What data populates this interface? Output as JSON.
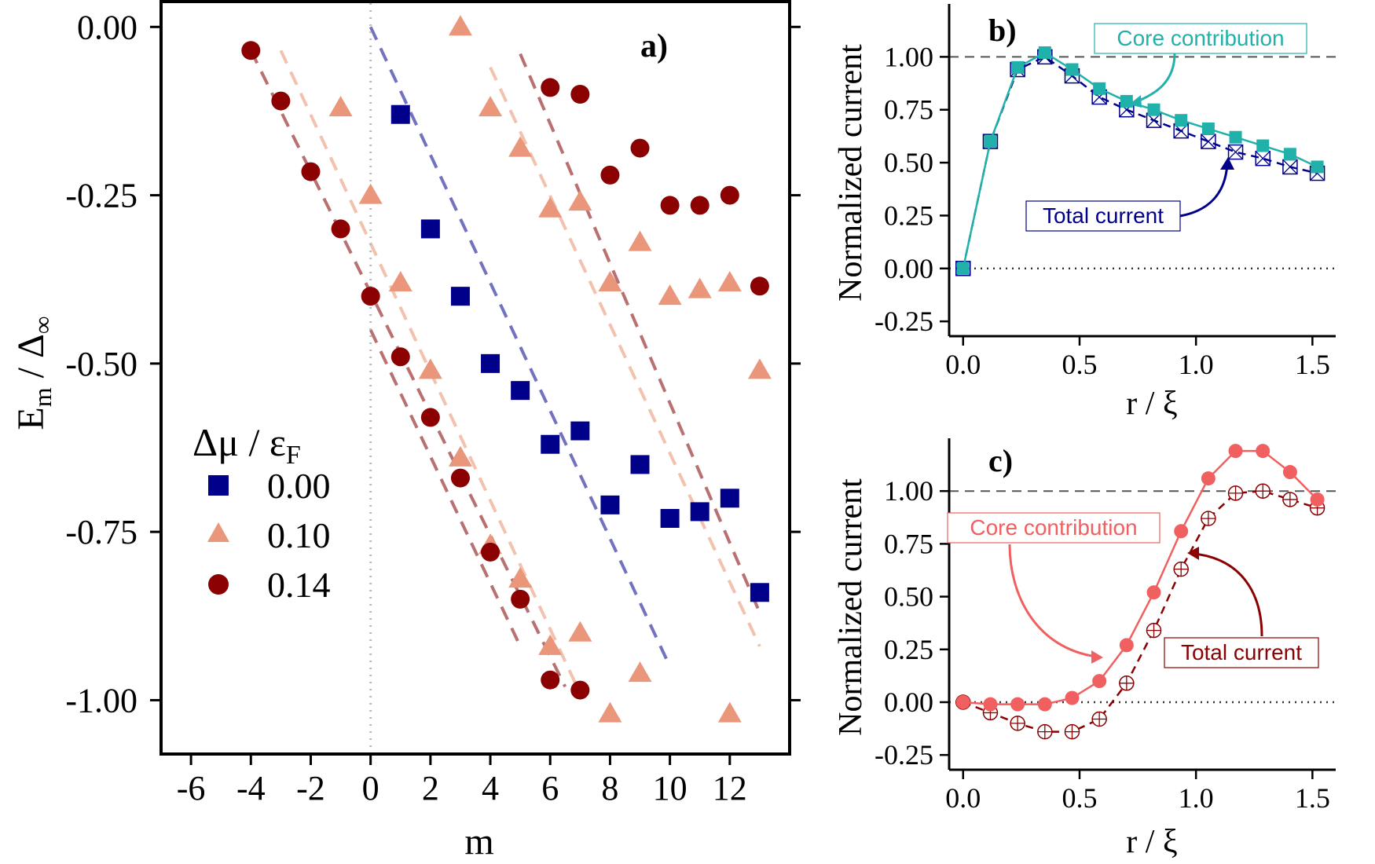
{
  "chart_data": [
    {
      "id": "a",
      "type": "scatter",
      "panel_label": "a)",
      "xlabel": "m",
      "ylabel_main": "E",
      "ylabel_sub": "m",
      "ylabel_den": " / Δ",
      "ylabel_den_sub": "∞",
      "xlim": [
        -7,
        14
      ],
      "ylim": [
        -1.08,
        0.04
      ],
      "xticks": [
        -6,
        -4,
        -2,
        0,
        2,
        4,
        6,
        8,
        10,
        12
      ],
      "xtick_labels": [
        "-6",
        "-4",
        "-2",
        "0",
        "2",
        "4",
        "6",
        "8",
        "10",
        "12"
      ],
      "yticks": [
        0,
        -0.25,
        -0.5,
        -0.75,
        -1.0
      ],
      "ytick_labels": [
        "0.00",
        "-0.25",
        "-0.50",
        "-0.75",
        "-1.00"
      ],
      "vline_x": 0,
      "legend": {
        "title_main": "Δμ / ε",
        "title_sub": "F",
        "entries": [
          "0.00",
          "0.10",
          "0.14"
        ]
      },
      "series": [
        {
          "name": "0.00",
          "marker": "square",
          "color": "#00008B",
          "x": [
            1,
            2,
            3,
            4,
            5,
            6,
            7,
            8,
            9,
            10,
            11,
            12,
            13
          ],
          "y": [
            -0.13,
            -0.3,
            -0.4,
            -0.5,
            -0.54,
            -0.62,
            -0.6,
            -0.71,
            -0.65,
            -0.73,
            -0.72,
            -0.7,
            -0.84
          ]
        },
        {
          "name": "0.10",
          "marker": "triangle",
          "color": "#E9967A",
          "x": [
            -1,
            0,
            1,
            2,
            3,
            3,
            4,
            4,
            5,
            5,
            6,
            6,
            7,
            7,
            8,
            8,
            9,
            9,
            10,
            11,
            12,
            12,
            13
          ],
          "y": [
            -0.12,
            -0.25,
            -0.38,
            -0.51,
            -0.64,
            0.0,
            -0.12,
            -0.77,
            -0.18,
            -0.82,
            -0.27,
            -0.92,
            -0.26,
            -0.9,
            -0.38,
            -1.02,
            -0.32,
            -0.96,
            -0.4,
            -0.39,
            -0.38,
            -1.02,
            -0.51
          ]
        },
        {
          "name": "0.14",
          "marker": "circle",
          "color": "#8B0000",
          "x": [
            -4,
            -3,
            -2,
            -1,
            0,
            1,
            2,
            3,
            4,
            5,
            6,
            6,
            7,
            7,
            8,
            9,
            10,
            11,
            12,
            13
          ],
          "y": [
            -0.035,
            -0.11,
            -0.215,
            -0.3,
            -0.4,
            -0.49,
            -0.58,
            -0.67,
            -0.78,
            -0.85,
            -0.09,
            -0.97,
            -0.1,
            -0.985,
            -0.22,
            -0.18,
            -0.265,
            -0.265,
            -0.25,
            -0.385
          ]
        }
      ],
      "guide_lines": [
        {
          "color": "#B87070",
          "x": [
            -4,
            6.5
          ],
          "y": [
            -0.035,
            -0.98
          ]
        },
        {
          "color": "#F2C2AE",
          "x": [
            -3,
            7
          ],
          "y": [
            -0.035,
            -0.99
          ]
        },
        {
          "color": "#7272C0",
          "x": [
            0,
            10
          ],
          "y": [
            0.0,
            -0.95
          ]
        },
        {
          "color": "#F2C2AE",
          "x": [
            4,
            13
          ],
          "y": [
            -0.06,
            -0.92
          ]
        },
        {
          "color": "#B87070",
          "x": [
            5,
            13
          ],
          "y": [
            -0.04,
            -0.87
          ]
        },
        {
          "color": "#B87070",
          "x": [
            0,
            5
          ],
          "y": [
            -0.45,
            -0.92
          ]
        }
      ]
    },
    {
      "id": "b",
      "type": "line",
      "panel_label": "b)",
      "xlabel": "r / ξ",
      "ylabel": "Normalized current",
      "xlim": [
        -0.06,
        1.6
      ],
      "ylim": [
        -0.32,
        1.25
      ],
      "xticks": [
        0.0,
        0.5,
        1.0,
        1.5
      ],
      "xtick_labels": [
        "0.0",
        "0.5",
        "1.0",
        "1.5"
      ],
      "yticks": [
        1.0,
        0.75,
        0.5,
        0.25,
        0.0,
        -0.25
      ],
      "ytick_labels": [
        "1.00",
        "0.75",
        "0.50",
        "0.25",
        "0.00",
        "-0.25"
      ],
      "hline_dashed": 1.0,
      "hline_dotted": 0.0,
      "x": [
        0,
        0.117,
        0.234,
        0.351,
        0.468,
        0.585,
        0.702,
        0.819,
        0.936,
        1.053,
        1.17,
        1.287,
        1.404,
        1.521
      ],
      "series": [
        {
          "name": "Core contribution",
          "color": "#20B2AA",
          "marker": "filled-square",
          "style": "solid",
          "values": [
            0.0,
            0.6,
            0.95,
            1.02,
            0.94,
            0.85,
            0.79,
            0.75,
            0.7,
            0.66,
            0.62,
            0.58,
            0.54,
            0.48
          ]
        },
        {
          "name": "Total current",
          "color": "#00008B",
          "marker": "crossed-square",
          "style": "dashed",
          "values": [
            0.0,
            0.6,
            0.94,
            1.0,
            0.91,
            0.81,
            0.75,
            0.7,
            0.65,
            0.6,
            0.55,
            0.52,
            0.48,
            0.45
          ]
        }
      ],
      "annotations": [
        {
          "text": "Core contribution",
          "color": "#20B2AA",
          "target": [
            0.73,
            0.79
          ]
        },
        {
          "text": "Total current",
          "color": "#00008B",
          "target": [
            1.15,
            0.5
          ]
        }
      ]
    },
    {
      "id": "c",
      "type": "line",
      "panel_label": "c)",
      "xlabel": "r / ξ",
      "ylabel": "Normalized current",
      "xlim": [
        -0.06,
        1.6
      ],
      "ylim": [
        -0.32,
        1.25
      ],
      "xticks": [
        0.0,
        0.5,
        1.0,
        1.5
      ],
      "xtick_labels": [
        "0.0",
        "0.5",
        "1.0",
        "1.5"
      ],
      "yticks": [
        1.0,
        0.75,
        0.5,
        0.25,
        0.0,
        -0.25
      ],
      "ytick_labels": [
        "1.00",
        "0.75",
        "0.50",
        "0.25",
        "0.00",
        "-0.25"
      ],
      "hline_dashed": 1.0,
      "hline_dotted": 0.0,
      "x": [
        0,
        0.117,
        0.234,
        0.351,
        0.468,
        0.585,
        0.702,
        0.819,
        0.936,
        1.053,
        1.17,
        1.287,
        1.404,
        1.521
      ],
      "series": [
        {
          "name": "Core contribution",
          "color": "#F06060",
          "marker": "filled-circle",
          "style": "solid",
          "values": [
            0.0,
            -0.01,
            -0.01,
            -0.01,
            0.02,
            0.1,
            0.27,
            0.52,
            0.81,
            1.06,
            1.19,
            1.19,
            1.09,
            0.96
          ]
        },
        {
          "name": "Total current",
          "color": "#8B0000",
          "marker": "crossed-circle",
          "style": "dashed",
          "values": [
            0.0,
            -0.05,
            -0.1,
            -0.14,
            -0.14,
            -0.08,
            0.09,
            0.34,
            0.63,
            0.87,
            0.99,
            1.0,
            0.96,
            0.92
          ]
        }
      ],
      "annotations": [
        {
          "text": "Core contribution",
          "color": "#F06060",
          "target": [
            0.68,
            0.2
          ]
        },
        {
          "text": "Total current",
          "color": "#8B0000",
          "target": [
            1.0,
            0.68
          ]
        }
      ]
    }
  ]
}
